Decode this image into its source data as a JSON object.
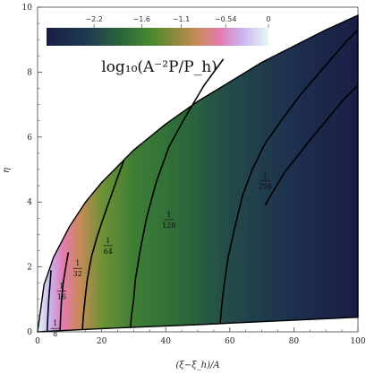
{
  "chart_data": {
    "type": "heatmap",
    "title": "",
    "xlabel": "(ξ−ξ_h)/A",
    "ylabel": "η",
    "xlim": [
      0,
      100
    ],
    "ylim": [
      0,
      10
    ],
    "x_ticks": [
      "0",
      "20",
      "40",
      "60",
      "80",
      "100"
    ],
    "y_ticks": [
      "0",
      "2",
      "4",
      "6",
      "8",
      "10"
    ],
    "colorbar": {
      "title": "log₁₀(A⁻²P/P_h)",
      "range": [
        -2.8,
        0
      ],
      "ticks": [
        "−2.2",
        "−1.6",
        "−1.1",
        "−0.54",
        "0"
      ],
      "colors": [
        "#1a1d45",
        "#1e3a50",
        "#2c6a3a",
        "#4e8a30",
        "#8a8a3a",
        "#c98a5a",
        "#e47bb0",
        "#c9b2f0",
        "#e6f8f4"
      ]
    },
    "domain_boundary": {
      "upper": [
        [
          0,
          0.0
        ],
        [
          2,
          1.45
        ],
        [
          5,
          2.3
        ],
        [
          10,
          3.25
        ],
        [
          15,
          4.0
        ],
        [
          20,
          4.6
        ],
        [
          25,
          5.1
        ],
        [
          30,
          5.6
        ],
        [
          40,
          6.4
        ],
        [
          50,
          7.1
        ],
        [
          60,
          7.7
        ],
        [
          70,
          8.3
        ],
        [
          80,
          8.8
        ],
        [
          90,
          9.3
        ],
        [
          100,
          9.75
        ]
      ],
      "lower": [
        [
          0,
          0.0
        ],
        [
          20,
          0.1
        ],
        [
          50,
          0.22
        ],
        [
          100,
          0.45
        ]
      ]
    },
    "contours": [
      {
        "label_num": "1",
        "label_den": "8",
        "x_min": 3,
        "label_pos": [
          5.5,
          0.05
        ],
        "points": [
          [
            3,
            0.0
          ],
          [
            3.2,
            0.5
          ],
          [
            3.5,
            1.0
          ],
          [
            3.9,
            1.5
          ],
          [
            4.2,
            1.9
          ]
        ]
      },
      {
        "label_num": "1",
        "label_den": "16",
        "x_min": 7,
        "label_pos": [
          7.5,
          1.2
        ],
        "points": [
          [
            7,
            0.05
          ],
          [
            7.2,
            0.5
          ],
          [
            7.5,
            1.0
          ],
          [
            8,
            1.5
          ],
          [
            8.8,
            2.0
          ],
          [
            9.6,
            2.45
          ]
        ]
      },
      {
        "label_num": "1",
        "label_den": "32",
        "x_min": 14,
        "label_pos": [
          12.5,
          1.9
        ],
        "points": [
          [
            14,
            0.08
          ],
          [
            14.3,
            0.5
          ],
          [
            14.8,
            1.0
          ],
          [
            15.5,
            1.6
          ],
          [
            16.8,
            2.3
          ],
          [
            18.5,
            2.9
          ],
          [
            20.5,
            3.5
          ],
          [
            23,
            4.2
          ],
          [
            25.5,
            4.9
          ],
          [
            27,
            5.3
          ]
        ]
      },
      {
        "label_num": "1",
        "label_den": "64",
        "x_min": 29,
        "label_pos": [
          22,
          2.6
        ],
        "points": [
          [
            29,
            0.12
          ],
          [
            29.3,
            0.5
          ],
          [
            30,
            1.0
          ],
          [
            30.5,
            1.6
          ],
          [
            32,
            2.5
          ],
          [
            34,
            3.5
          ],
          [
            37,
            4.6
          ],
          [
            41,
            5.7
          ],
          [
            46,
            6.6
          ],
          [
            52,
            7.6
          ],
          [
            58,
            8.4
          ]
        ]
      },
      {
        "label_num": "1",
        "label_den": "128",
        "x_min": 57,
        "label_pos": [
          41,
          3.4
        ],
        "points": [
          [
            57,
            0.27
          ],
          [
            57.5,
            0.8
          ],
          [
            58.3,
            1.5
          ],
          [
            59.5,
            2.3
          ],
          [
            61.5,
            3.2
          ],
          [
            64,
            4.2
          ],
          [
            67,
            5.0
          ],
          [
            71,
            5.8
          ],
          [
            76,
            6.5
          ],
          [
            82,
            7.3
          ],
          [
            89,
            8.1
          ],
          [
            96,
            8.9
          ],
          [
            100,
            9.3
          ]
        ]
      },
      {
        "label_num": "1",
        "label_den": "256",
        "x_min": 0,
        "label_pos": [
          71,
          4.6
        ],
        "points": [
          [
            100,
            7.6
          ],
          [
            95,
            7.1
          ],
          [
            90,
            6.5
          ],
          [
            85,
            5.9
          ],
          [
            81,
            5.4
          ],
          [
            77,
            4.9
          ],
          [
            74,
            4.4
          ],
          [
            71,
            3.9
          ]
        ]
      }
    ]
  }
}
